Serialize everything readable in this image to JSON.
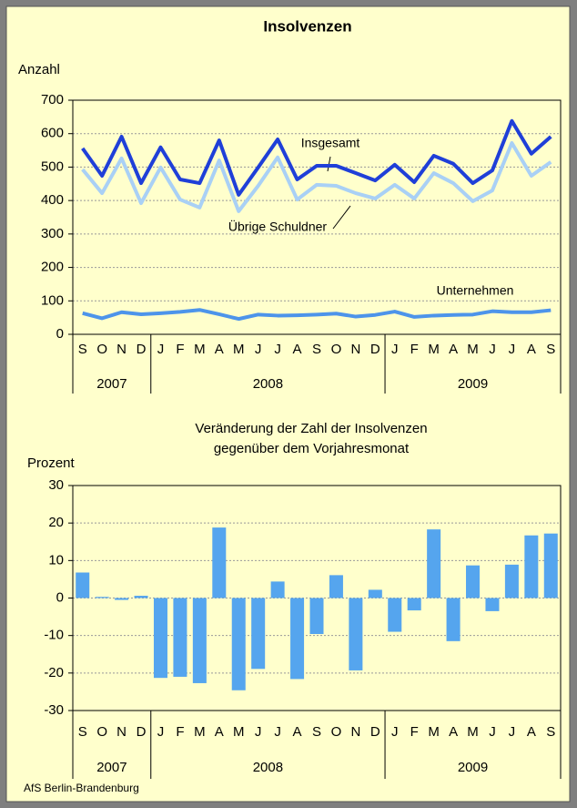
{
  "chart_data": [
    {
      "type": "line",
      "title": "Insolvenzen",
      "ylabel": "Anzahl",
      "categories": [
        "S",
        "O",
        "N",
        "D",
        "J",
        "F",
        "M",
        "A",
        "M",
        "J",
        "J",
        "A",
        "S",
        "O",
        "N",
        "D",
        "J",
        "F",
        "M",
        "A",
        "M",
        "J",
        "J",
        "A",
        "S"
      ],
      "years": [
        "2007",
        "2008",
        "2009"
      ],
      "ylim": [
        0,
        700
      ],
      "yticks": [
        0,
        100,
        200,
        300,
        400,
        500,
        600,
        700
      ],
      "grid": true,
      "series": [
        {
          "name": "Insgesamt",
          "color": "#1f3fd8",
          "values": [
            556,
            474,
            591,
            452,
            559,
            463,
            452,
            580,
            417,
            499,
            583,
            463,
            504,
            504,
            482,
            460,
            507,
            455,
            534,
            510,
            452,
            490,
            638,
            540,
            591
          ]
        },
        {
          "name": "Übrige Schuldner",
          "color": "#a9d0f5",
          "values": [
            493,
            422,
            526,
            392,
            499,
            403,
            379,
            520,
            368,
            444,
            529,
            403,
            447,
            444,
            422,
            406,
            447,
            406,
            482,
            452,
            398,
            430,
            572,
            474,
            515
          ]
        },
        {
          "name": "Unternehmen",
          "color": "#4d94ea",
          "values": [
            63,
            48,
            66,
            60,
            63,
            67,
            73,
            60,
            46,
            59,
            56,
            57,
            59,
            62,
            53,
            58,
            68,
            52,
            56,
            58,
            59,
            69,
            66,
            66,
            72
          ]
        }
      ]
    },
    {
      "type": "bar",
      "title": [
        "Veränderung der Zahl der Insolvenzen",
        "gegenüber dem Vorjahresmonat"
      ],
      "ylabel": "Prozent",
      "categories": [
        "S",
        "O",
        "N",
        "D",
        "J",
        "F",
        "M",
        "A",
        "M",
        "J",
        "J",
        "A",
        "S",
        "O",
        "N",
        "D",
        "J",
        "F",
        "M",
        "A",
        "M",
        "J",
        "J",
        "A",
        "S"
      ],
      "years": [
        "2007",
        "2008",
        "2009"
      ],
      "ylim": [
        -30,
        30
      ],
      "yticks": [
        -30,
        -20,
        -10,
        0,
        10,
        20,
        30
      ],
      "grid": true,
      "color": "#55a5ee",
      "values": [
        6.8,
        0.3,
        -0.5,
        0.6,
        -21.3,
        -21.0,
        -22.7,
        18.8,
        -24.6,
        -18.9,
        4.4,
        -21.6,
        -9.6,
        6.1,
        -19.3,
        2.2,
        -9.0,
        -3.3,
        18.3,
        -11.5,
        8.7,
        -3.5,
        8.9,
        16.7,
        17.2
      ]
    }
  ],
  "footer": "AfS Berlin-Brandenburg"
}
